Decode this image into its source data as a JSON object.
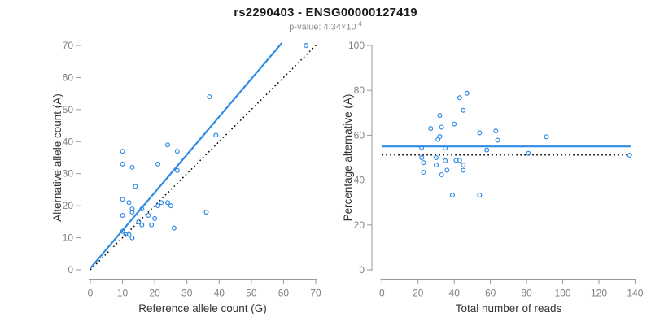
{
  "header": {
    "title": "rs2290403 - ENSG00000127419",
    "subtitle_prefix": "p-value: ",
    "subtitle_mantissa": "4.34×10",
    "subtitle_exponent": "-4"
  },
  "colors": {
    "accent": "#2e8be6",
    "black": "#000000",
    "axis": "#999999",
    "tick_label": "#7f7f7f",
    "axis_title": "#333333"
  },
  "chart_data": [
    {
      "type": "scatter",
      "name": "allele-counts-plot",
      "xlabel": "Reference allele count (G)",
      "ylabel": "Alternative allele count (A)",
      "xlim": [
        0,
        70
      ],
      "ylim": [
        0,
        70
      ],
      "xticks": [
        0,
        10,
        20,
        30,
        40,
        50,
        60,
        70
      ],
      "yticks": [
        0,
        10,
        20,
        30,
        40,
        50,
        60,
        70
      ],
      "grid": false,
      "legend": null,
      "points": [
        [
          67,
          70
        ],
        [
          37,
          54
        ],
        [
          39,
          42
        ],
        [
          24,
          39
        ],
        [
          27,
          37
        ],
        [
          10,
          37
        ],
        [
          10,
          33
        ],
        [
          13,
          32
        ],
        [
          21,
          33
        ],
        [
          27,
          31
        ],
        [
          14,
          26
        ],
        [
          10,
          22
        ],
        [
          12,
          21
        ],
        [
          22,
          21
        ],
        [
          21,
          20
        ],
        [
          24,
          21
        ],
        [
          25,
          20
        ],
        [
          13,
          19
        ],
        [
          13,
          18
        ],
        [
          16,
          19
        ],
        [
          10,
          17
        ],
        [
          18,
          17
        ],
        [
          20,
          16
        ],
        [
          36,
          18
        ],
        [
          15,
          15
        ],
        [
          16,
          14
        ],
        [
          19,
          14
        ],
        [
          26,
          13
        ],
        [
          10,
          12
        ],
        [
          11,
          11
        ],
        [
          12,
          11
        ],
        [
          13,
          10
        ]
      ],
      "lines": [
        {
          "name": "fit-line",
          "style": "solid",
          "color_key": "accent",
          "points": [
            [
              0,
              0.5
            ],
            [
              59.5,
              70.8
            ]
          ]
        },
        {
          "name": "identity-line",
          "style": "dotted",
          "color_key": "black",
          "points": [
            [
              0,
              0
            ],
            [
              70.5,
              70.5
            ]
          ]
        }
      ]
    },
    {
      "type": "scatter",
      "name": "percentage-alternative-plot",
      "xlabel": "Total number of reads",
      "ylabel": "Percentage alternative (A)",
      "xlim": [
        0,
        140
      ],
      "ylim": [
        0,
        100
      ],
      "xticks": [
        0,
        20,
        40,
        60,
        80,
        100,
        120,
        140
      ],
      "yticks": [
        0,
        20,
        40,
        60,
        80,
        100
      ],
      "grid": false,
      "legend": null,
      "points": [
        [
          137,
          51.1
        ],
        [
          91,
          59.3
        ],
        [
          81,
          51.9
        ],
        [
          63,
          61.9
        ],
        [
          64,
          57.8
        ],
        [
          47,
          78.7
        ],
        [
          43,
          76.7
        ],
        [
          45,
          71.1
        ],
        [
          54,
          61.1
        ],
        [
          58,
          53.4
        ],
        [
          40,
          65.0
        ],
        [
          32,
          68.8
        ],
        [
          33,
          63.6
        ],
        [
          43,
          48.8
        ],
        [
          41,
          48.8
        ],
        [
          45,
          46.7
        ],
        [
          45,
          44.4
        ],
        [
          32,
          59.4
        ],
        [
          31,
          58.1
        ],
        [
          35,
          54.3
        ],
        [
          27,
          63.0
        ],
        [
          35,
          48.6
        ],
        [
          36,
          44.4
        ],
        [
          54,
          33.3
        ],
        [
          30,
          50.0
        ],
        [
          30,
          46.7
        ],
        [
          33,
          42.4
        ],
        [
          39,
          33.3
        ],
        [
          22,
          54.5
        ],
        [
          22,
          50.0
        ],
        [
          23,
          47.8
        ],
        [
          23,
          43.5
        ]
      ],
      "lines": [
        {
          "name": "mean-line",
          "style": "solid",
          "color_key": "accent",
          "points": [
            [
              0,
              55
            ],
            [
              137.5,
              55
            ]
          ]
        },
        {
          "name": "null-line",
          "style": "dotted",
          "color_key": "black",
          "points": [
            [
              0,
              51.2
            ],
            [
              136,
              51.2
            ]
          ]
        }
      ]
    }
  ]
}
